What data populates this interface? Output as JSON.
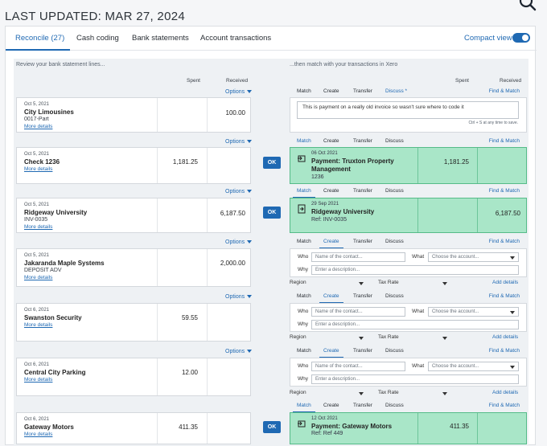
{
  "header": {
    "last_updated": "LAST UPDATED: MAR 27, 2024"
  },
  "tabs": [
    {
      "label": "Reconcile (27)"
    },
    {
      "label": "Cash coding"
    },
    {
      "label": "Bank statements"
    },
    {
      "label": "Account transactions"
    }
  ],
  "compact_view": "Compact view",
  "left_header": "Review your bank statement lines...",
  "right_header": "...then match with your transactions in Xero",
  "col": {
    "spent": "Spent",
    "received": "Received"
  },
  "options_label": "Options",
  "more_details": "More details",
  "ok_label": "OK",
  "right_tabs": {
    "match": "Match",
    "create": "Create",
    "transfer": "Transfer",
    "discuss": "Discuss",
    "discuss_star": "Discuss *",
    "find_match": "Find & Match"
  },
  "form": {
    "who": "Who",
    "why": "Why",
    "what": "What",
    "who_placeholder": "Name of the contact...",
    "why_placeholder": "Enter a description...",
    "what_placeholder": "Choose the account...",
    "region": "Region",
    "tax_rate": "Tax Rate",
    "add_details": "Add details"
  },
  "lines": [
    {
      "date": "Oct 5, 2021",
      "name": "City Limousines",
      "ref": "0017-Part",
      "spent": "",
      "received": "100.00"
    },
    {
      "date": "Oct 5, 2021",
      "name": "Check 1236",
      "ref": "",
      "spent": "1,181.25",
      "received": ""
    },
    {
      "date": "Oct 5, 2021",
      "name": "Ridgeway University",
      "ref": "INV-0035",
      "spent": "",
      "received": "6,187.50"
    },
    {
      "date": "Oct 5, 2021",
      "name": "Jakaranda Maple Systems",
      "ref": "DEPOSIT ADV",
      "spent": "",
      "received": "2,000.00"
    },
    {
      "date": "Oct 6, 2021",
      "name": "Swanston Security",
      "ref": "",
      "spent": "59.55",
      "received": ""
    },
    {
      "date": "Oct 6, 2021",
      "name": "Central City Parking",
      "ref": "",
      "spent": "12.00",
      "received": ""
    },
    {
      "date": "Oct 6, 2021",
      "name": "Gateway Motors",
      "ref": "",
      "spent": "411.35",
      "received": ""
    }
  ],
  "discuss_text": "This is payment on a really old invoice so wasn't sure where to code it",
  "discuss_hint": "Ctrl + S at any time to save.",
  "matches": [
    {
      "date": "06 Oct 2021",
      "payee": "Payment: Truxton Property Management",
      "ref": "1236",
      "spent": "1,181.25",
      "received": ""
    },
    {
      "date": "29 Sep 2021",
      "payee": "Ridgeway University",
      "ref": "Ref: INV-0035",
      "spent": "",
      "received": "6,187.50"
    },
    {
      "date": "12 Oct 2021",
      "payee": "Payment: Gateway Motors",
      "ref": "Ref: Ref 449",
      "spent": "411.35",
      "received": ""
    }
  ],
  "colors": {
    "accent": "#1f69b3",
    "match_bg": "#a9e6c8"
  }
}
